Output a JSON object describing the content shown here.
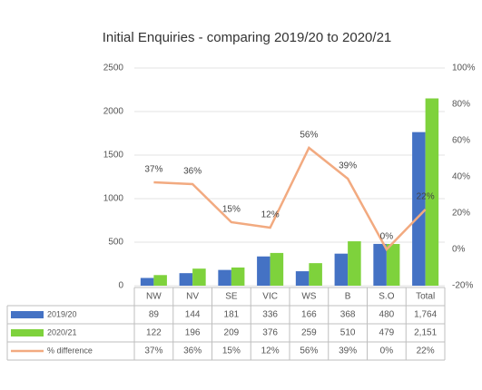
{
  "chart_data": {
    "type": "bar",
    "title": "Initial Enquiries - comparing 2019/20 to 2020/21",
    "categories": [
      "NW",
      "NV",
      "SE",
      "VIC",
      "WS",
      "B",
      "S.O",
      "Total"
    ],
    "series": [
      {
        "name": "2019/20",
        "color": "#4472c4",
        "values": [
          89,
          144,
          181,
          336,
          166,
          368,
          480,
          1764
        ],
        "value_labels": [
          "89",
          "144",
          "181",
          "336",
          "166",
          "368",
          "480",
          "1,764"
        ]
      },
      {
        "name": "2020/21",
        "color": "#7ed23c",
        "values": [
          122,
          196,
          209,
          376,
          259,
          510,
          479,
          2151
        ],
        "value_labels": [
          "122",
          "196",
          "209",
          "376",
          "259",
          "510",
          "479",
          "2,151"
        ]
      },
      {
        "name": "% difference",
        "color": "#f2aa80",
        "type": "line",
        "axis": "y2",
        "values": [
          37,
          36,
          15,
          12,
          56,
          39,
          0,
          22
        ],
        "value_labels": [
          "37%",
          "36%",
          "15%",
          "12%",
          "56%",
          "39%",
          "0%",
          "22%"
        ]
      }
    ],
    "ylim": [
      0,
      2500
    ],
    "yticks": [
      0,
      500,
      1000,
      1500,
      2000,
      2500
    ],
    "y2lim": [
      -20,
      100
    ],
    "y2ticks": [
      {
        "value": -20,
        "label": "-20%"
      },
      {
        "value": 0,
        "label": "0%"
      },
      {
        "value": 20,
        "label": "20%"
      },
      {
        "value": 40,
        "label": "40%"
      },
      {
        "value": 60,
        "label": "60%"
      },
      {
        "value": 80,
        "label": "80%"
      },
      {
        "value": 100,
        "label": "100%"
      }
    ],
    "grid": true
  }
}
